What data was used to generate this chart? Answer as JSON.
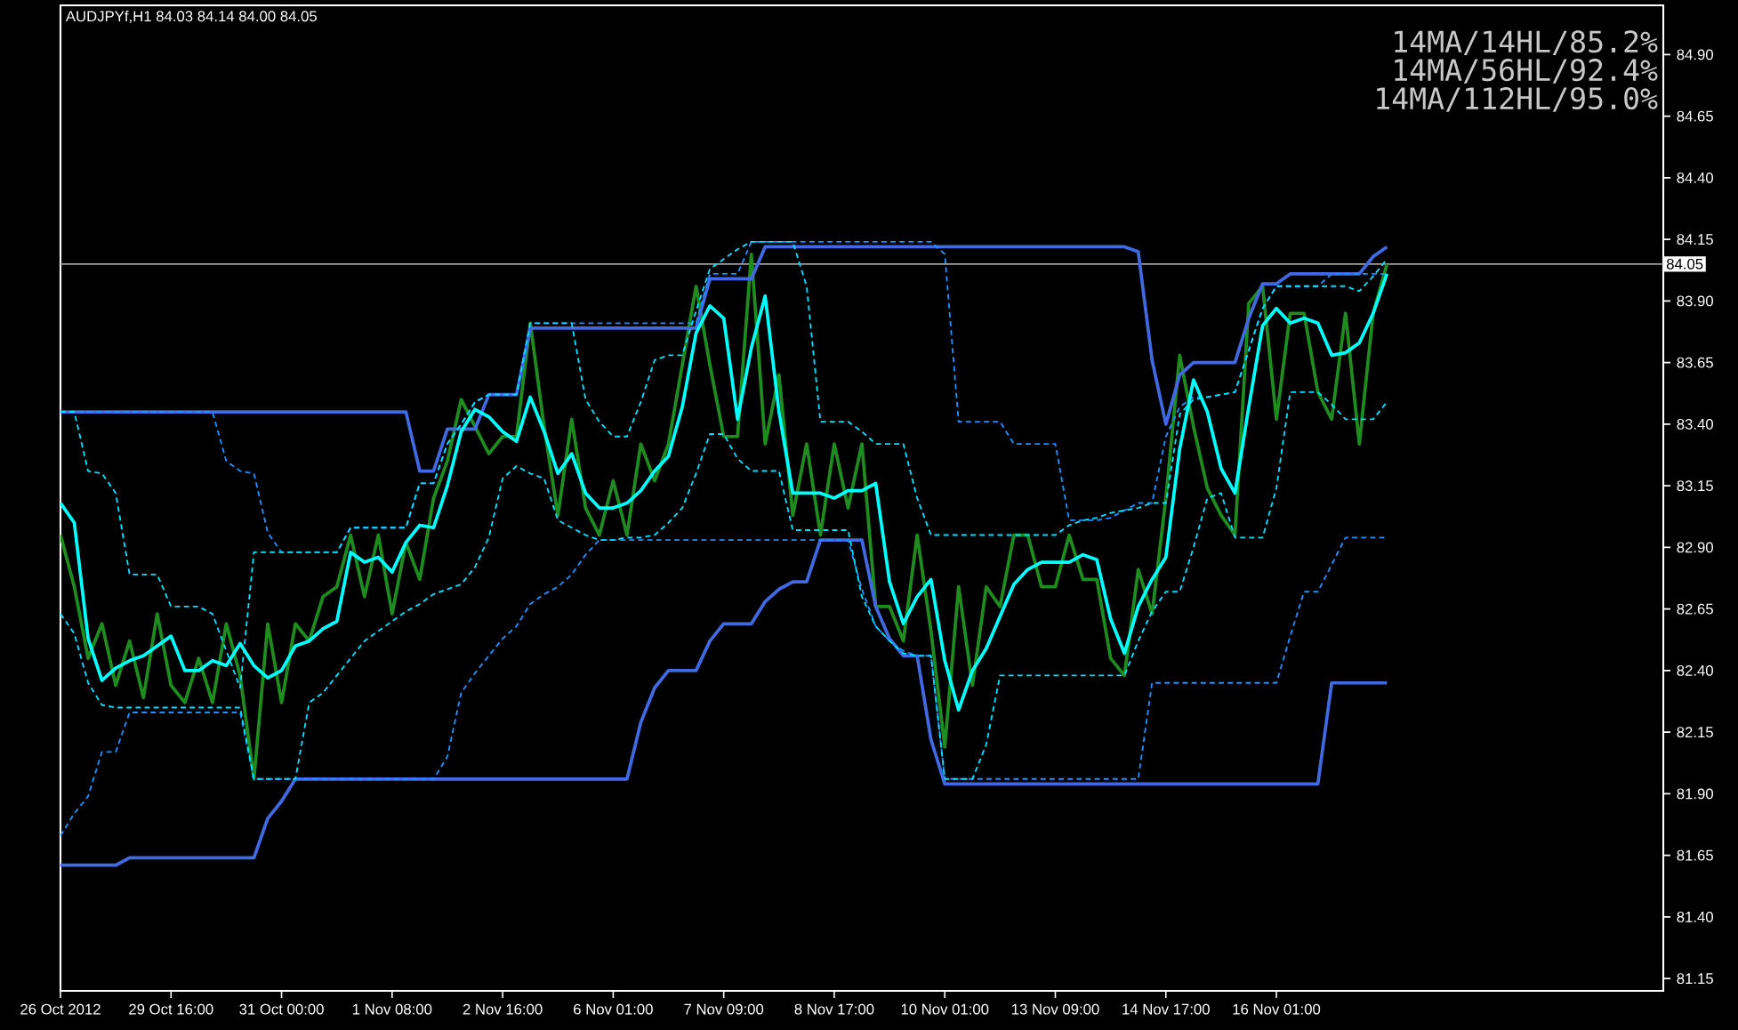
{
  "chart_data": {
    "type": "line",
    "title": "AUDJPYf,H1  84.03 84.14 84.00 84.05",
    "annotations": [
      "14MA/14HL/85.2%",
      "14MA/56HL/92.4%",
      "14MA/112HL/95.0%"
    ],
    "categories": [
      "26 Oct 2012",
      null,
      null,
      null,
      null,
      null,
      null,
      null,
      "29 Oct 16:00",
      null,
      null,
      null,
      null,
      null,
      null,
      null,
      "31 Oct 00:00",
      null,
      null,
      null,
      null,
      null,
      null,
      null,
      "1 Nov 08:00",
      null,
      null,
      null,
      null,
      null,
      null,
      null,
      "2 Nov 16:00",
      null,
      null,
      null,
      null,
      null,
      null,
      null,
      "6 Nov 01:00",
      null,
      null,
      null,
      null,
      null,
      null,
      null,
      "7 Nov 09:00",
      null,
      null,
      null,
      null,
      null,
      null,
      null,
      "8 Nov 17:00",
      null,
      null,
      null,
      null,
      null,
      null,
      null,
      "10 Nov 01:00",
      null,
      null,
      null,
      null,
      null,
      null,
      null,
      "13 Nov 09:00",
      null,
      null,
      null,
      null,
      null,
      null,
      null,
      "14 Nov 17:00",
      null,
      null,
      null,
      null,
      null,
      null,
      null,
      "16 Nov 01:00",
      null,
      null,
      null,
      null,
      null,
      null,
      null,
      null,
      null,
      null,
      null,
      null,
      null,
      null,
      null,
      null,
      null,
      null,
      null,
      null,
      null,
      null,
      null,
      null,
      null,
      null,
      null,
      null
    ],
    "ylim": [
      81.1,
      85.1
    ],
    "yticks": [
      81.15,
      {
        "value": 81.4,
        "label": "81.40"
      },
      81.65,
      {
        "value": 81.9,
        "label": "81.90"
      },
      82.15,
      {
        "value": 82.4,
        "label": "82.40"
      },
      82.65,
      {
        "value": 82.9,
        "label": "82.90"
      },
      83.15,
      {
        "value": 83.4,
        "label": "83.40"
      },
      83.65,
      {
        "value": 83.9,
        "label": "83.90"
      },
      84.15,
      {
        "value": 84.4,
        "label": "84.40"
      },
      84.65,
      {
        "value": 84.9,
        "label": "84.90"
      }
    ],
    "ref_lines": [
      {
        "axis": "y",
        "value": 84.05,
        "label": "84.05",
        "color": "#a0a0a0"
      }
    ],
    "series": [
      {
        "color": "#1e8c1e",
        "line_style": "solid",
        "values": [
          82.95,
          82.74,
          82.45,
          82.59,
          82.34,
          82.52,
          82.29,
          82.63,
          82.34,
          82.27,
          82.45,
          82.27,
          82.59,
          82.38,
          81.96,
          82.59,
          82.27,
          82.59,
          82.52,
          82.7,
          82.74,
          82.95,
          82.7,
          82.95,
          82.63,
          82.92,
          82.77,
          83.1,
          83.25,
          83.5,
          83.39,
          83.28,
          83.35,
          83.35,
          83.81,
          83.39,
          83.03,
          83.42,
          83.06,
          82.95,
          83.17,
          82.95,
          83.32,
          83.17,
          83.32,
          83.64,
          83.96,
          83.64,
          83.35,
          83.35,
          84.09,
          83.32,
          83.6,
          83.03,
          83.32,
          82.95,
          83.32,
          83.06,
          83.32,
          82.66,
          82.66,
          82.52,
          82.95,
          82.56,
          82.09,
          82.74,
          82.34,
          82.74,
          82.66,
          82.95,
          82.95,
          82.74,
          82.74,
          82.95,
          82.77,
          82.77,
          82.45,
          82.38,
          82.81,
          82.63,
          83.1,
          83.68,
          83.39,
          83.14,
          83.03,
          82.95,
          83.89,
          83.96,
          83.42,
          83.85,
          83.85,
          83.53,
          83.42,
          83.85,
          83.32,
          83.85,
          84.05,
          null,
          null,
          null,
          null,
          null,
          null,
          null,
          null,
          null,
          null,
          null,
          null,
          null,
          null,
          null,
          null,
          null,
          null,
          null,
          null
        ]
      },
      {
        "color": "#4169e1",
        "line_style": "solid",
        "values": [
          83.45,
          83.45,
          83.45,
          83.45,
          83.45,
          83.45,
          83.45,
          83.45,
          83.45,
          83.45,
          83.45,
          83.45,
          83.45,
          83.45,
          83.45,
          83.45,
          83.45,
          83.45,
          83.45,
          83.45,
          83.45,
          83.45,
          83.45,
          83.45,
          83.45,
          83.45,
          83.21,
          83.21,
          83.38,
          83.38,
          83.38,
          83.52,
          83.52,
          83.52,
          83.79,
          83.79,
          83.79,
          83.79,
          83.79,
          83.79,
          83.79,
          83.79,
          83.79,
          83.79,
          83.79,
          83.79,
          83.79,
          83.99,
          83.99,
          83.99,
          83.99,
          84.12,
          84.12,
          84.12,
          84.12,
          84.12,
          84.12,
          84.12,
          84.12,
          84.12,
          84.12,
          84.12,
          84.12,
          84.12,
          84.12,
          84.12,
          84.12,
          84.12,
          84.12,
          84.12,
          84.12,
          84.12,
          84.12,
          84.12,
          84.12,
          84.12,
          84.12,
          84.12,
          84.1,
          83.66,
          83.4,
          83.6,
          83.65,
          83.65,
          83.65,
          83.65,
          83.83,
          83.97,
          83.97,
          84.01,
          84.01,
          84.01,
          84.01,
          84.01,
          84.01,
          84.08,
          84.12,
          null,
          null,
          null,
          null,
          null,
          null,
          null,
          null,
          null,
          null,
          null,
          null,
          null,
          null,
          null,
          null,
          null,
          null,
          null,
          null
        ]
      },
      {
        "color": "#4169e1",
        "line_style": "solid",
        "values": [
          81.61,
          81.61,
          81.61,
          81.61,
          81.61,
          81.64,
          81.64,
          81.64,
          81.64,
          81.64,
          81.64,
          81.64,
          81.64,
          81.64,
          81.64,
          81.8,
          81.87,
          81.96,
          81.96,
          81.96,
          81.96,
          81.96,
          81.96,
          81.96,
          81.96,
          81.96,
          81.96,
          81.96,
          81.96,
          81.96,
          81.96,
          81.96,
          81.96,
          81.96,
          81.96,
          81.96,
          81.96,
          81.96,
          81.96,
          81.96,
          81.96,
          81.96,
          82.19,
          82.33,
          82.4,
          82.4,
          82.4,
          82.52,
          82.59,
          82.59,
          82.59,
          82.68,
          82.73,
          82.76,
          82.76,
          82.93,
          82.93,
          82.93,
          82.93,
          82.66,
          82.53,
          82.46,
          82.46,
          82.12,
          81.94,
          81.94,
          81.94,
          81.94,
          81.94,
          81.94,
          81.94,
          81.94,
          81.94,
          81.94,
          81.94,
          81.94,
          81.94,
          81.94,
          81.94,
          81.94,
          81.94,
          81.94,
          81.94,
          81.94,
          81.94,
          81.94,
          81.94,
          81.94,
          81.94,
          81.94,
          81.94,
          81.94,
          82.35,
          82.35,
          82.35,
          82.35,
          82.35,
          null,
          null,
          null,
          null,
          null,
          null,
          null,
          null,
          null,
          null,
          null,
          null,
          null,
          null,
          null,
          null,
          null,
          null,
          null,
          null
        ]
      },
      {
        "color": "#1e90ff",
        "line_style": "dashed",
        "values": [
          83.45,
          83.45,
          83.45,
          83.45,
          83.45,
          83.45,
          83.45,
          83.45,
          83.45,
          83.45,
          83.45,
          83.45,
          83.25,
          83.21,
          83.2,
          82.96,
          82.88,
          82.88,
          82.88,
          82.88,
          82.88,
          82.98,
          82.98,
          82.98,
          82.98,
          82.98,
          83.16,
          83.16,
          83.32,
          83.4,
          83.49,
          83.52,
          83.52,
          83.52,
          83.81,
          83.81,
          83.81,
          83.81,
          83.81,
          83.81,
          83.81,
          83.81,
          83.81,
          83.81,
          83.81,
          83.81,
          83.81,
          84.01,
          84.01,
          84.01,
          84.14,
          84.14,
          84.14,
          84.14,
          84.14,
          84.14,
          84.14,
          84.14,
          84.14,
          84.14,
          84.14,
          84.14,
          84.14,
          84.14,
          84.09,
          83.41,
          83.41,
          83.41,
          83.41,
          83.32,
          83.32,
          83.32,
          83.32,
          83.01,
          83.01,
          83.01,
          83.02,
          83.05,
          83.08,
          83.08,
          83.35,
          83.47,
          83.51,
          83.51,
          83.52,
          83.53,
          83.7,
          83.87,
          83.96,
          83.96,
          83.96,
          83.96,
          84.01,
          84.01,
          84.01,
          84.01,
          84.01,
          null,
          null,
          null,
          null,
          null,
          null,
          null,
          null,
          null,
          null,
          null,
          null,
          null,
          null,
          null,
          null,
          null,
          null,
          null,
          null
        ]
      },
      {
        "color": "#1e90ff",
        "line_style": "dashed",
        "values": [
          81.73,
          81.82,
          81.89,
          82.07,
          82.07,
          82.23,
          82.23,
          82.23,
          82.23,
          82.23,
          82.23,
          82.23,
          82.23,
          82.23,
          81.96,
          81.96,
          81.96,
          81.96,
          81.96,
          81.96,
          81.96,
          81.96,
          81.96,
          81.96,
          81.96,
          81.96,
          81.96,
          81.96,
          82.05,
          82.31,
          82.39,
          82.46,
          82.53,
          82.58,
          82.67,
          82.71,
          82.74,
          82.79,
          82.87,
          82.93,
          82.93,
          82.93,
          82.93,
          82.93,
          82.93,
          82.93,
          82.93,
          82.93,
          82.93,
          82.93,
          82.93,
          82.93,
          82.93,
          82.93,
          82.93,
          82.93,
          82.93,
          82.93,
          82.73,
          82.58,
          82.52,
          82.48,
          82.46,
          82.46,
          81.96,
          81.96,
          81.96,
          81.96,
          81.96,
          81.96,
          81.96,
          81.96,
          81.96,
          81.96,
          81.96,
          81.96,
          81.96,
          81.96,
          81.96,
          82.35,
          82.35,
          82.35,
          82.35,
          82.35,
          82.35,
          82.35,
          82.35,
          82.35,
          82.35,
          82.54,
          82.72,
          82.72,
          82.83,
          82.94,
          82.94,
          82.94,
          82.94,
          null,
          null,
          null,
          null,
          null,
          null,
          null,
          null,
          null,
          null,
          null,
          null,
          null,
          null,
          null,
          null,
          null,
          null,
          null,
          null
        ]
      },
      {
        "color": "#00e0ff",
        "line_style": "dashed",
        "values": [
          83.45,
          83.45,
          83.21,
          83.2,
          83.12,
          82.79,
          82.79,
          82.79,
          82.66,
          82.66,
          82.66,
          82.63,
          82.48,
          82.33,
          82.88,
          82.88,
          82.88,
          82.88,
          82.88,
          82.88,
          82.88,
          82.98,
          82.98,
          82.98,
          82.98,
          82.98,
          83.16,
          83.16,
          83.32,
          83.4,
          83.49,
          83.52,
          83.52,
          83.52,
          83.81,
          83.81,
          83.81,
          83.81,
          83.5,
          83.41,
          83.35,
          83.35,
          83.49,
          83.66,
          83.68,
          83.68,
          83.86,
          84.03,
          84.07,
          84.11,
          84.14,
          84.14,
          84.14,
          84.14,
          83.96,
          83.41,
          83.41,
          83.41,
          83.37,
          83.32,
          83.32,
          83.32,
          83.1,
          82.95,
          82.95,
          82.95,
          82.95,
          82.95,
          82.95,
          82.95,
          82.95,
          82.95,
          82.95,
          82.99,
          83.01,
          83.02,
          83.04,
          83.05,
          83.06,
          83.08,
          83.08,
          83.44,
          83.5,
          83.51,
          83.52,
          83.53,
          83.7,
          83.87,
          83.96,
          83.96,
          83.96,
          83.96,
          83.96,
          83.96,
          83.94,
          84.0,
          84.07,
          null,
          null,
          null,
          null,
          null,
          null,
          null,
          null,
          null,
          null,
          null,
          null,
          null,
          null,
          null,
          null,
          null,
          null,
          null,
          null
        ]
      },
      {
        "color": "#00e0ff",
        "line_style": "dashed",
        "values": [
          82.63,
          82.55,
          82.35,
          82.26,
          82.25,
          82.25,
          82.25,
          82.25,
          82.25,
          82.25,
          82.25,
          82.25,
          82.25,
          82.25,
          81.96,
          81.96,
          81.96,
          81.96,
          82.27,
          82.31,
          82.38,
          82.45,
          82.52,
          82.56,
          82.6,
          82.64,
          82.67,
          82.71,
          82.73,
          82.75,
          82.82,
          82.94,
          83.18,
          83.23,
          83.2,
          83.18,
          83.01,
          82.98,
          82.95,
          82.93,
          82.93,
          82.94,
          82.94,
          82.95,
          83.0,
          83.06,
          83.2,
          83.36,
          83.36,
          83.26,
          83.21,
          83.21,
          83.21,
          82.97,
          82.97,
          82.97,
          82.97,
          82.97,
          82.7,
          82.58,
          82.52,
          82.47,
          82.46,
          82.46,
          81.96,
          81.96,
          81.96,
          82.1,
          82.38,
          82.38,
          82.38,
          82.38,
          82.38,
          82.38,
          82.38,
          82.38,
          82.38,
          82.38,
          82.52,
          82.64,
          82.72,
          82.72,
          82.9,
          83.1,
          83.12,
          82.94,
          82.94,
          82.94,
          83.14,
          83.53,
          83.53,
          83.53,
          83.48,
          83.42,
          83.42,
          83.42,
          83.49,
          null,
          null,
          null,
          null,
          null,
          null,
          null,
          null,
          null,
          null,
          null,
          null,
          null,
          null,
          null,
          null,
          null,
          null,
          null,
          null
        ]
      },
      {
        "color": "#00ffff",
        "line_style": "solid",
        "values": [
          83.08,
          83.0,
          82.53,
          82.36,
          82.41,
          82.44,
          82.46,
          82.5,
          82.54,
          82.4,
          82.4,
          82.44,
          82.42,
          82.51,
          82.42,
          82.37,
          82.4,
          82.5,
          82.52,
          82.57,
          82.6,
          82.88,
          82.84,
          82.86,
          82.8,
          82.92,
          82.99,
          82.98,
          83.15,
          83.37,
          83.46,
          83.43,
          83.37,
          83.33,
          83.51,
          83.37,
          83.2,
          83.28,
          83.12,
          83.06,
          83.06,
          83.08,
          83.13,
          83.21,
          83.27,
          83.47,
          83.77,
          83.88,
          83.83,
          83.42,
          83.71,
          83.92,
          83.45,
          83.12,
          83.12,
          83.12,
          83.1,
          83.13,
          83.13,
          83.16,
          82.76,
          82.59,
          82.7,
          82.77,
          82.44,
          82.24,
          82.4,
          82.49,
          82.62,
          82.75,
          82.81,
          82.84,
          82.84,
          82.84,
          82.87,
          82.85,
          82.61,
          82.47,
          82.66,
          82.77,
          82.86,
          83.3,
          83.58,
          83.45,
          83.22,
          83.12,
          83.47,
          83.8,
          83.87,
          83.81,
          83.83,
          83.81,
          83.68,
          83.69,
          83.73,
          83.85,
          84.01,
          null,
          null,
          null,
          null,
          null,
          null,
          null,
          null,
          null,
          null,
          null,
          null,
          null,
          null,
          null,
          null,
          null,
          null,
          null,
          null
        ]
      }
    ]
  }
}
